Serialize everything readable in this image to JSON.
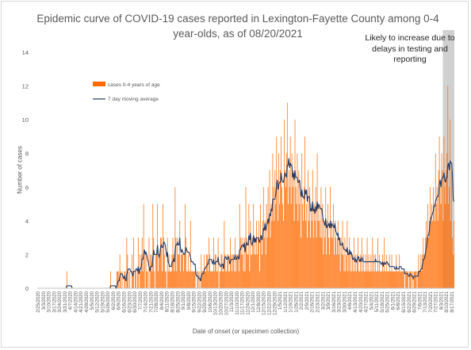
{
  "chart_data": {
    "type": "bar",
    "title": [
      "Epidemic curve of COVID-19 cases reported in Lexington-Fayette County among 0-4",
      "year-olds, as of 08/20/2021"
    ],
    "xlabel": "Date of onset (or specimen collection)",
    "ylabel": "Number of cases",
    "ylim": [
      0,
      14
    ],
    "yticks": [
      0,
      2,
      4,
      6,
      8,
      10,
      12,
      14
    ],
    "grid": false,
    "legend_position": "upper-left",
    "annotation": [
      "Likely to increase due to",
      "delays in testing and",
      "reporting"
    ],
    "x_tick_labels": [
      "2/25/2020",
      "3/3/2020",
      "3/10/2020",
      "3/17/2020",
      "3/24/2020",
      "3/31/2020",
      "4/7/2020",
      "4/14/2020",
      "4/21/2020",
      "4/28/2020",
      "5/5/2020",
      "5/12/2020",
      "5/19/2020",
      "5/26/2020",
      "6/2/2020",
      "6/9/2020",
      "6/16/2020",
      "6/23/2020",
      "6/30/2020",
      "7/7/2020",
      "7/14/2020",
      "7/21/2020",
      "7/28/2020",
      "8/4/2020",
      "8/11/2020",
      "8/18/2020",
      "8/25/2020",
      "9/1/2020",
      "9/8/2020",
      "9/15/2020",
      "9/22/2020",
      "9/29/2020",
      "10/6/2020",
      "10/13/2020",
      "10/20/2020",
      "10/27/2020",
      "11/3/2020",
      "11/10/2020",
      "11/17/2020",
      "11/24/2020",
      "12/1/2020",
      "12/8/2020",
      "12/15/2020",
      "12/22/2020",
      "12/29/2020",
      "1/5/2021",
      "1/12/2021",
      "1/19/2021",
      "1/26/2021",
      "2/2/2021",
      "2/9/2021",
      "2/16/2021",
      "2/23/2021",
      "3/2/2021",
      "3/9/2021",
      "3/16/2021",
      "3/23/2021",
      "3/30/2021",
      "4/6/2021",
      "4/13/2021",
      "4/20/2021",
      "4/27/2021",
      "5/4/2021",
      "5/11/2021",
      "5/18/2021",
      "5/25/2021",
      "6/1/2021",
      "6/8/2021",
      "6/15/2021",
      "6/22/2021",
      "6/29/2021",
      "7/6/2021",
      "7/13/2021",
      "7/20/2021",
      "7/27/2021",
      "8/3/2021",
      "8/10/2021",
      "8/17/2021"
    ],
    "series": [
      {
        "name": "cases 0-4 years of age",
        "kind": "bar",
        "color": "#ff6a00",
        "values": [
          0,
          0,
          0,
          0,
          0,
          0,
          0,
          0,
          0,
          0,
          0,
          0,
          0,
          0,
          0,
          0,
          0,
          0,
          0,
          0,
          0,
          0,
          0,
          0,
          0,
          0,
          0,
          0,
          0,
          0,
          0,
          0,
          0,
          0,
          0,
          0,
          0,
          0,
          1,
          0,
          0,
          0,
          0,
          0,
          0,
          0,
          0,
          0,
          0,
          0,
          0,
          0,
          0,
          0,
          0,
          0,
          0,
          0,
          0,
          0,
          0,
          0,
          0,
          0,
          0,
          0,
          0,
          0,
          0,
          0,
          0,
          0,
          0,
          0,
          0,
          0,
          0,
          0,
          0,
          0,
          0,
          0,
          0,
          0,
          0,
          0,
          0,
          0,
          0,
          0,
          0,
          0,
          0,
          0,
          0,
          1,
          0,
          0,
          0,
          0,
          0,
          0,
          0,
          1,
          1,
          1,
          0,
          2,
          1,
          0,
          1,
          0,
          0,
          1,
          1,
          0,
          3,
          2,
          1,
          0,
          1,
          0,
          0,
          2,
          1,
          3,
          0,
          1,
          1,
          0,
          1,
          3,
          0,
          2,
          1,
          2,
          3,
          1,
          5,
          2,
          0,
          2,
          1,
          1,
          0,
          3,
          0,
          2,
          2,
          1,
          5,
          3,
          1,
          0,
          2,
          2,
          5,
          1,
          2,
          2,
          3,
          3,
          1,
          5,
          3,
          2,
          1,
          1,
          0,
          3,
          1,
          2,
          1,
          1,
          1,
          2,
          3,
          2,
          1,
          6,
          3,
          1,
          3,
          2,
          2,
          4,
          1,
          2,
          2,
          2,
          1,
          2,
          5,
          3,
          1,
          1,
          2,
          1,
          1,
          4,
          1,
          1,
          1,
          1,
          1,
          1,
          0,
          0,
          1,
          1,
          0,
          1,
          0,
          2,
          1,
          1,
          1,
          2,
          1,
          1,
          2,
          2,
          1,
          3,
          2,
          1,
          1,
          1,
          1,
          3,
          1,
          2,
          2,
          1,
          1,
          3,
          0,
          1,
          1,
          2,
          2,
          1,
          1,
          4,
          2,
          1,
          1,
          2,
          2,
          1,
          1,
          3,
          2,
          1,
          2,
          2,
          1,
          3,
          1,
          2,
          2,
          2,
          1,
          5,
          3,
          2,
          3,
          2,
          1,
          3,
          1,
          6,
          3,
          2,
          2,
          5,
          1,
          4,
          2,
          2,
          3,
          5,
          2,
          3,
          2,
          4,
          2,
          3,
          4,
          1,
          5,
          3,
          2,
          4,
          6,
          3,
          4,
          2,
          5,
          3,
          6,
          4,
          7,
          3,
          5,
          4,
          8,
          6,
          4,
          7,
          5,
          9,
          6,
          4,
          8,
          5,
          7,
          9,
          6,
          5,
          4,
          10,
          7,
          6,
          8,
          11,
          5,
          7,
          6,
          9,
          5,
          8,
          6,
          7,
          4,
          10,
          6,
          5,
          8,
          4,
          7,
          5,
          6,
          3,
          8,
          5,
          4,
          6,
          9,
          4,
          5,
          3,
          7,
          4,
          6,
          3,
          5,
          4,
          7,
          3,
          5,
          4,
          6,
          3,
          8,
          4,
          5,
          4,
          3,
          6,
          3,
          5,
          2,
          4,
          3,
          6,
          2,
          4,
          5,
          3,
          2,
          6,
          3,
          4,
          3,
          5,
          2,
          4,
          3,
          2,
          3,
          4,
          2,
          3,
          1,
          3,
          2,
          4,
          2,
          1,
          3,
          1,
          2,
          4,
          1,
          2,
          3,
          1,
          2,
          1,
          2,
          1,
          3,
          1,
          2,
          1,
          2,
          3,
          1,
          1,
          2,
          1,
          3,
          1,
          2,
          1,
          1,
          2,
          1,
          3,
          1,
          2,
          1,
          1,
          2,
          1,
          3,
          1,
          2,
          1,
          2,
          1,
          1,
          3,
          1,
          2,
          1,
          1,
          1,
          2,
          1,
          3,
          1,
          1,
          2,
          1,
          1,
          1,
          2,
          1,
          1,
          2,
          1,
          1,
          1,
          1,
          1,
          2,
          1,
          1,
          1,
          2,
          1,
          1,
          1,
          1,
          1,
          1,
          0,
          1,
          1,
          1,
          1,
          0,
          1,
          1,
          1,
          0,
          1,
          0,
          1,
          1,
          1,
          1,
          0,
          1,
          2,
          1,
          1,
          2,
          1,
          2,
          3,
          2,
          2,
          3,
          4,
          3,
          5,
          3,
          4,
          6,
          4,
          5,
          4,
          6,
          5,
          4,
          8,
          5,
          6,
          4,
          7,
          9,
          6,
          5,
          8,
          7,
          4,
          9,
          6,
          5,
          7,
          8,
          12,
          5,
          6,
          10,
          4,
          7,
          3,
          2,
          4
        ],
        "sampled_values_note_x_start": "2/25/2020"
      },
      {
        "name": "7 day moving average",
        "kind": "line",
        "color": "#1f3864"
      }
    ]
  }
}
